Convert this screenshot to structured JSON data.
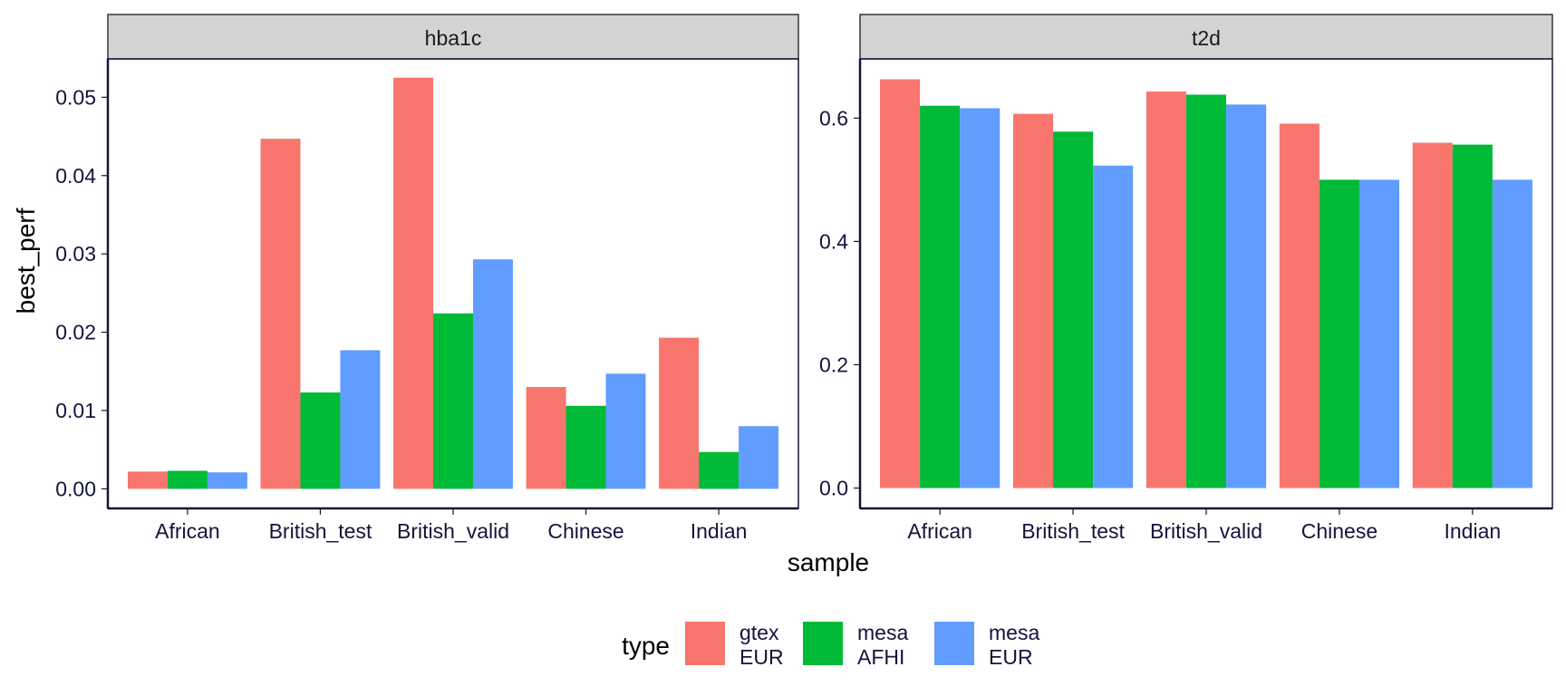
{
  "chart_data": {
    "type": "bar",
    "xlabel": "sample",
    "ylabel": "best_perf",
    "legend": {
      "title": "type",
      "position": "bottom",
      "entries": [
        {
          "line1": "gtex",
          "line2": "EUR",
          "color": "#F8766D"
        },
        {
          "line1": "mesa",
          "line2": "AFHI",
          "color": "#00BA38"
        },
        {
          "line1": "mesa",
          "line2": "EUR",
          "color": "#619CFF"
        }
      ]
    },
    "categories": [
      "African",
      "British_test",
      "British_valid",
      "Chinese",
      "Indian"
    ],
    "panels": [
      {
        "strip": "hba1c",
        "ylim": [
          -0.0025,
          0.0549
        ],
        "yticks": [
          0.0,
          0.01,
          0.02,
          0.03,
          0.04,
          0.05
        ],
        "ytick_labels": [
          "0.00",
          "0.01",
          "0.02",
          "0.03",
          "0.04",
          "0.05"
        ],
        "series": [
          {
            "values": [
              0.0022,
              0.0447,
              0.0525,
              0.013,
              0.0193
            ]
          },
          {
            "values": [
              0.0023,
              0.0123,
              0.0224,
              0.0106,
              0.0047
            ]
          },
          {
            "values": [
              0.0021,
              0.0177,
              0.0293,
              0.0147,
              0.008
            ]
          }
        ]
      },
      {
        "strip": "t2d",
        "ylim": [
          -0.033,
          0.696
        ],
        "yticks": [
          0.0,
          0.2,
          0.4,
          0.6
        ],
        "ytick_labels": [
          "0.0",
          "0.2",
          "0.4",
          "0.6"
        ],
        "series": [
          {
            "values": [
              0.663,
              0.607,
              0.643,
              0.591,
              0.56
            ]
          },
          {
            "values": [
              0.62,
              0.578,
              0.638,
              0.5,
              0.557
            ]
          },
          {
            "values": [
              0.616,
              0.523,
              0.622,
              0.5,
              0.5
            ]
          }
        ]
      }
    ]
  }
}
